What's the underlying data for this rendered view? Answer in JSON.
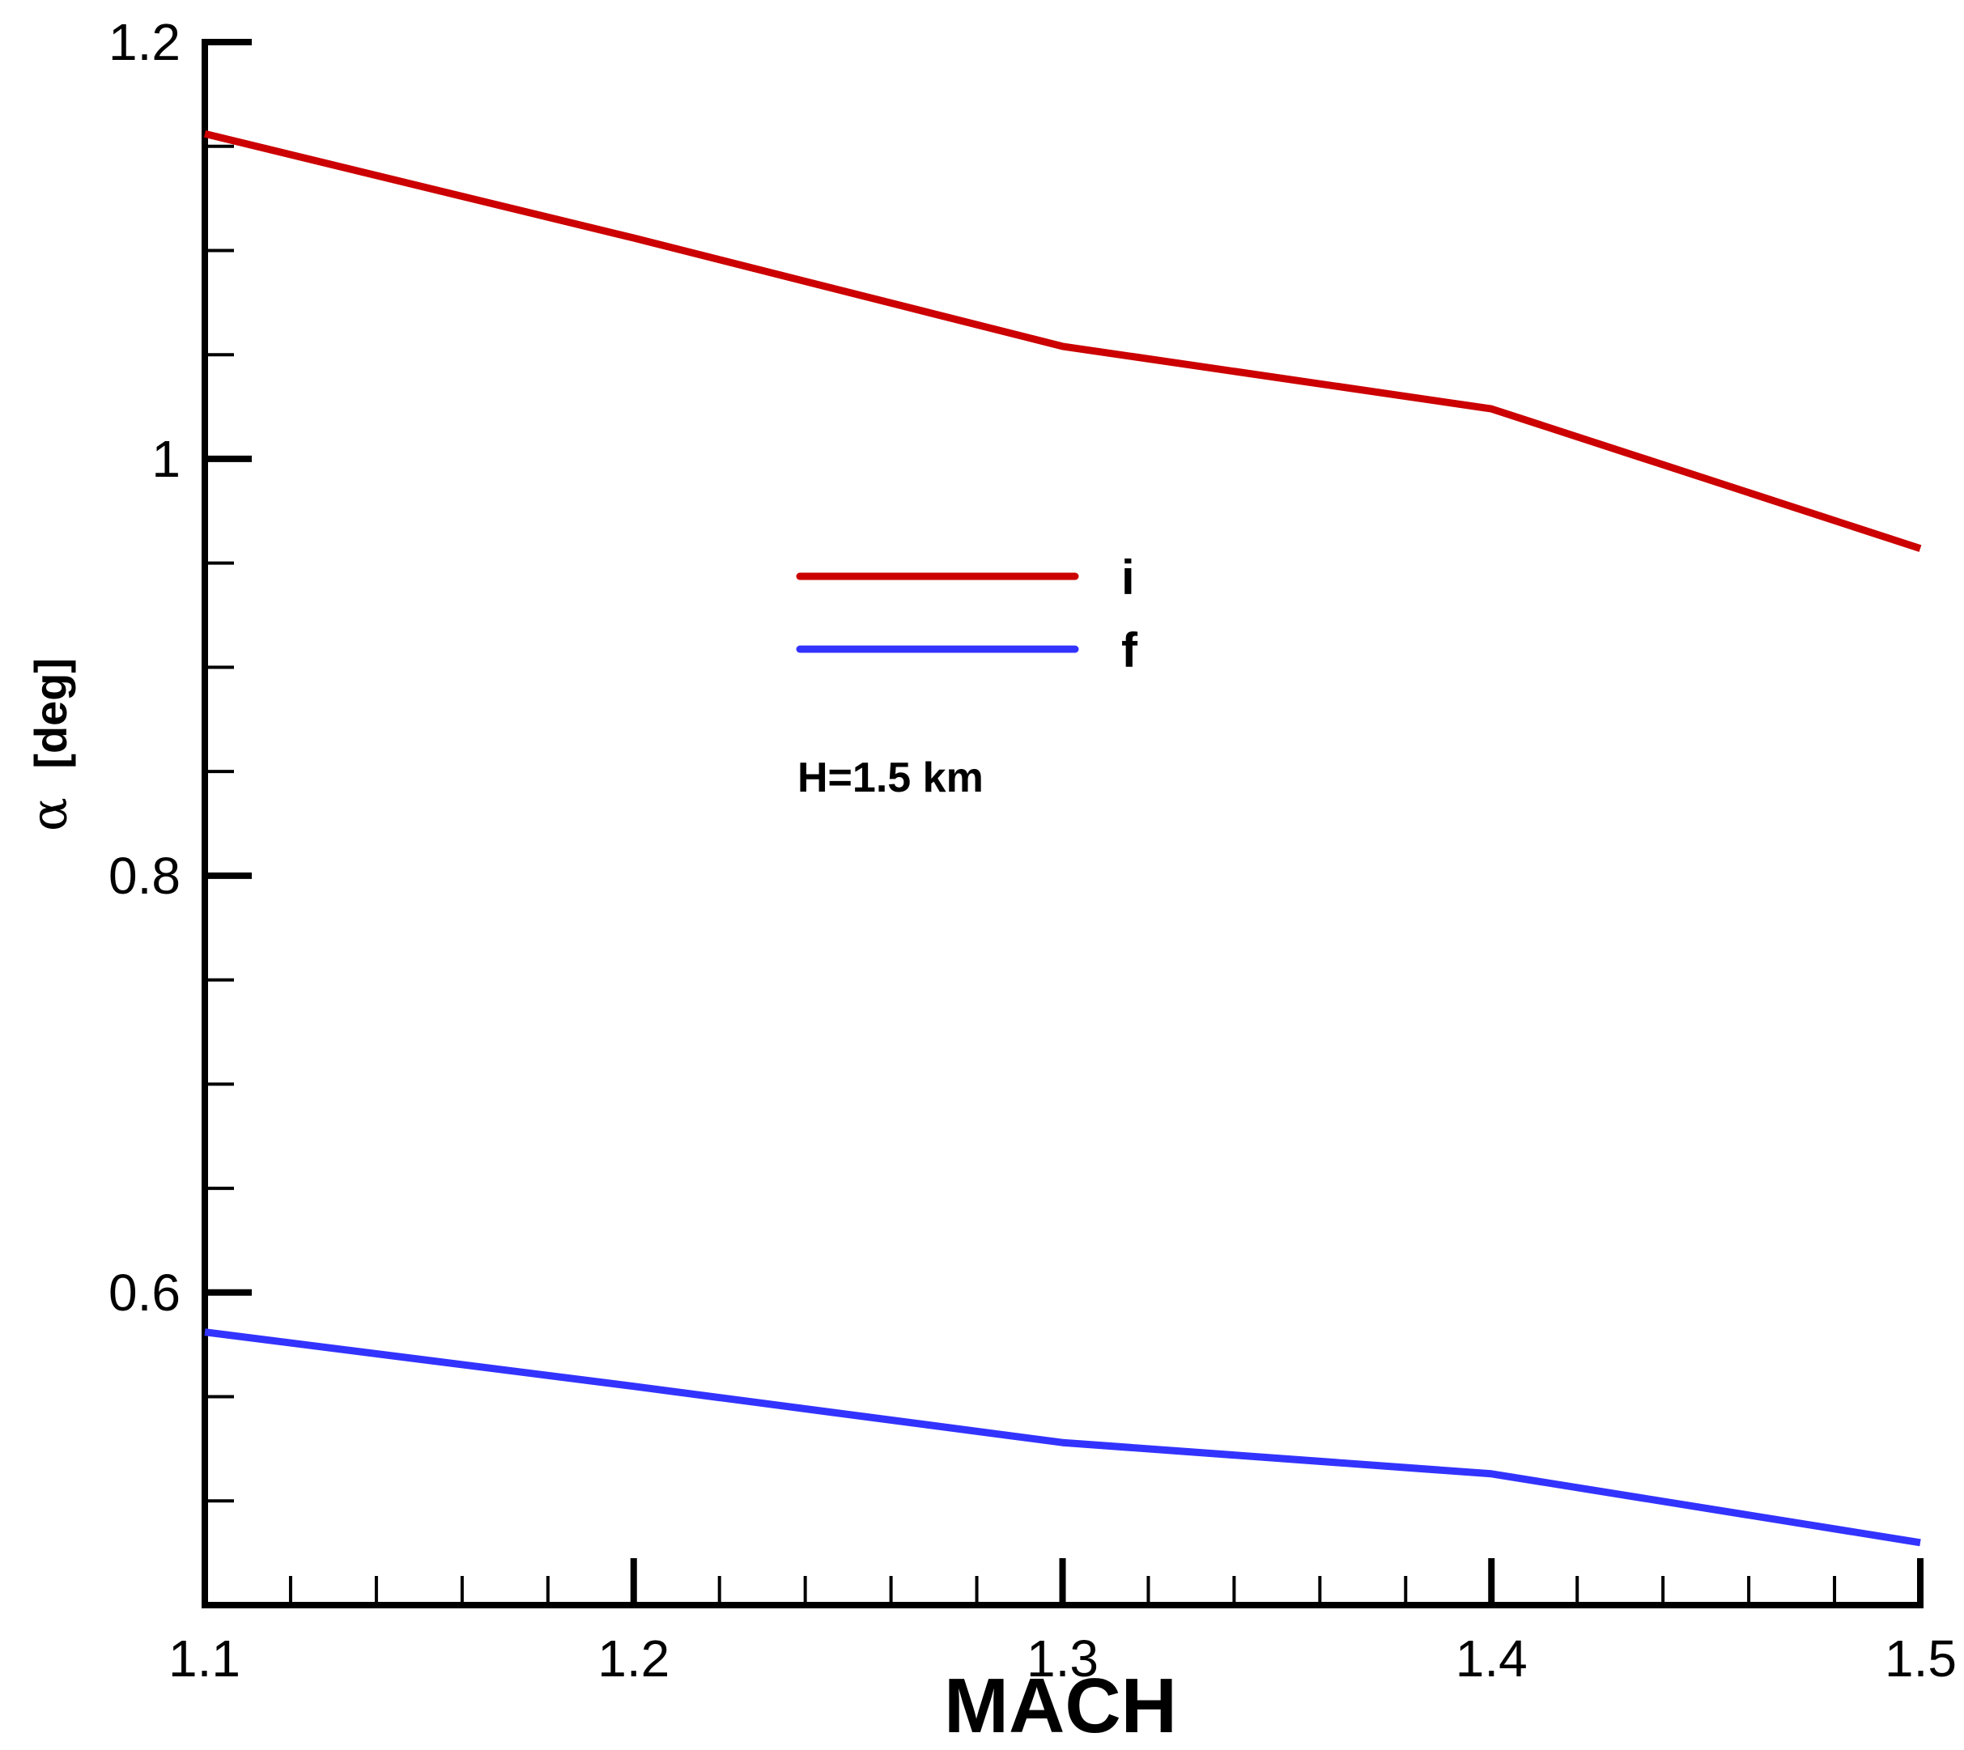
{
  "chart_data": {
    "type": "line",
    "title": "",
    "xlabel": "MACH",
    "ylabel": "α [deg]",
    "ylabel_symbol": "α",
    "ylabel_unit": "[deg]",
    "xlim": [
      1.1,
      1.5
    ],
    "ylim": [
      0.45,
      1.2
    ],
    "x_ticks": [
      1.1,
      1.2,
      1.3,
      1.4,
      1.5
    ],
    "x_tick_labels": [
      "1.1",
      "1.2",
      "1.3",
      "1.4",
      "1.5"
    ],
    "x_minor_step": 0.02,
    "y_ticks": [
      0.6,
      0.8,
      1.0,
      1.2
    ],
    "y_tick_labels": [
      "0.6",
      "0.8",
      "1",
      "1.2"
    ],
    "y_minor_step": 0.05,
    "grid": false,
    "legend_position": "center",
    "series": [
      {
        "name": "i",
        "color": "#cc0000",
        "x": [
          1.1,
          1.2,
          1.3,
          1.4,
          1.5
        ],
        "y": [
          1.156,
          1.106,
          1.054,
          1.024,
          0.957
        ]
      },
      {
        "name": "f",
        "color": "#3333ff",
        "x": [
          1.1,
          1.2,
          1.3,
          1.4,
          1.5
        ],
        "y": [
          0.581,
          0.555,
          0.528,
          0.513,
          0.48
        ]
      }
    ],
    "annotations": [
      {
        "text": "H=1.5 km"
      }
    ]
  }
}
